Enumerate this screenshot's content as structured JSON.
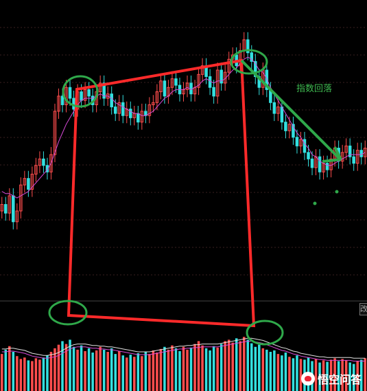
{
  "annotation_text": "指数回落",
  "side_tag": "改",
  "watermark": {
    "text": "悟空问答",
    "icon": "toutiao-logo-icon"
  },
  "colors": {
    "background": "#000000",
    "up": "#ff4d4d",
    "down": "#33e0e0",
    "ma_line": "#d84ad8",
    "ma_line2": "#e0e0e0",
    "annot_red": "#ff2a2a",
    "annot_green": "#2fa84a",
    "grid": "#3a1f1f"
  },
  "chart_data": [
    {
      "type": "candlestick",
      "title": "",
      "closes": [
        14.2,
        13.8,
        14.6,
        13.4,
        13.9,
        15.1,
        15.4,
        14.9,
        15.6,
        16.0,
        16.3,
        16.0,
        15.7,
        16.5,
        18.5,
        19.2,
        18.8,
        19.6,
        19.1,
        18.6,
        19.4,
        19.0,
        19.5,
        19.2,
        18.8,
        19.4,
        19.8,
        19.1,
        19.3,
        18.7,
        18.4,
        18.9,
        18.3,
        18.6,
        18.2,
        18.4,
        18.0,
        18.5,
        18.3,
        18.8,
        18.9,
        19.4,
        19.9,
        19.2,
        19.6,
        20.0,
        19.7,
        19.3,
        19.5,
        19.8,
        19.3,
        19.6,
        20.2,
        20.6,
        20.1,
        19.6,
        19.2,
        20.4,
        19.8,
        20.3,
        20.9,
        21.1,
        20.6,
        21.3,
        21.8,
        21.2,
        20.8,
        20.1,
        19.6,
        20.4,
        19.5,
        18.9,
        18.4,
        18.7,
        18.0,
        17.6,
        17.9,
        17.3,
        16.9,
        17.2,
        16.6,
        16.3,
        15.9,
        16.4,
        15.7,
        16.1,
        15.8,
        16.3,
        16.8,
        16.2,
        16.6,
        16.9,
        16.4,
        16.1,
        16.7,
        16.4,
        16.8
      ],
      "ma_line": [
        14.8,
        14.7,
        14.7,
        14.6,
        14.5,
        14.6,
        14.7,
        14.8,
        15.0,
        15.2,
        15.4,
        15.6,
        15.8,
        16.1,
        16.6,
        17.1,
        17.5,
        17.9,
        18.2,
        18.5,
        18.8,
        19.0,
        19.1,
        19.1,
        19.1,
        19.2,
        19.3,
        19.2,
        19.2,
        19.1,
        18.9,
        18.8,
        18.7,
        18.6,
        18.5,
        18.4,
        18.4,
        18.3,
        18.3,
        18.4,
        18.5,
        18.7,
        18.9,
        19.1,
        19.2,
        19.4,
        19.5,
        19.5,
        19.5,
        19.6,
        19.5,
        19.6,
        19.7,
        19.9,
        20.0,
        19.9,
        19.8,
        19.9,
        19.9,
        20.0,
        20.2,
        20.4,
        20.5,
        20.7,
        20.9,
        21.0,
        20.9,
        20.7,
        20.4,
        20.3,
        20.0,
        19.6,
        19.3,
        19.0,
        18.7,
        18.4,
        18.1,
        17.8,
        17.5,
        17.3,
        17.0,
        16.8,
        16.5,
        16.4,
        16.2,
        16.1,
        16.0,
        16.0,
        16.1,
        16.2,
        16.3,
        16.4,
        16.5,
        16.5,
        16.5,
        16.5,
        16.6
      ],
      "y_range": [
        10,
        23
      ]
    },
    {
      "type": "bar",
      "title": "",
      "values": [
        52,
        58,
        63,
        55,
        49,
        45,
        47,
        43,
        42,
        46,
        44,
        47,
        50,
        55,
        60,
        65,
        70,
        66,
        72,
        62,
        58,
        64,
        56,
        60,
        54,
        57,
        62,
        58,
        55,
        60,
        52,
        56,
        50,
        47,
        51,
        48,
        53,
        49,
        55,
        52,
        57,
        54,
        59,
        62,
        58,
        64,
        60,
        56,
        62,
        58,
        61,
        66,
        70,
        64,
        60,
        57,
        63,
        61,
        66,
        70,
        72,
        68,
        74,
        70,
        76,
        72,
        67,
        62,
        65,
        60,
        58,
        55,
        57,
        52,
        50,
        54,
        48,
        46,
        50,
        45,
        44,
        47,
        42,
        45,
        40,
        43,
        41,
        44,
        46,
        42,
        45,
        43,
        40,
        38,
        42,
        44,
        46
      ],
      "ma_line": [
        55,
        55,
        56,
        56,
        55,
        54,
        53,
        51,
        49,
        48,
        47,
        46,
        46,
        47,
        48,
        50,
        53,
        56,
        59,
        61,
        62,
        62,
        62,
        61,
        60,
        60,
        59,
        59,
        58,
        58,
        57,
        56,
        55,
        54,
        53,
        52,
        51,
        51,
        51,
        51,
        52,
        53,
        54,
        55,
        56,
        57,
        58,
        59,
        59,
        60,
        60,
        61,
        61,
        62,
        62,
        62,
        62,
        62,
        63,
        64,
        65,
        66,
        67,
        68,
        69,
        70,
        70,
        69,
        68,
        67,
        65,
        63,
        61,
        59,
        57,
        56,
        54,
        52,
        51,
        49,
        48,
        47,
        46,
        45,
        44,
        44,
        43,
        43,
        43,
        43,
        43,
        43,
        43,
        42,
        42,
        42,
        42
      ],
      "y_range": [
        0,
        110
      ]
    }
  ]
}
